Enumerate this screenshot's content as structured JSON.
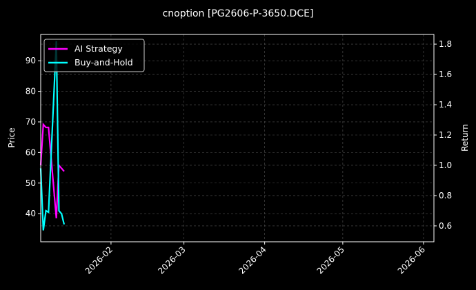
{
  "chart_data": {
    "type": "line",
    "title": "cnoption [PG2606-P-3650.DCE]",
    "ylabel_left": "Price",
    "ylabel_right": "Return",
    "xlim": [
      "2026-01-05",
      "2026-06-05"
    ],
    "ylim_left": [
      30.8,
      98.6
    ],
    "ylim_right": [
      0.495,
      1.864
    ],
    "x_ticks": [
      "2026-02-01",
      "2026-03-01",
      "2026-04-01",
      "2026-05-01",
      "2026-06-01"
    ],
    "x_tick_labels": [
      "2026-02",
      "2026-03",
      "2026-04",
      "2026-05",
      "2026-06"
    ],
    "y_ticks_left": [
      40,
      50,
      60,
      70,
      80,
      90
    ],
    "y_ticks_right": [
      0.6,
      0.8,
      1.0,
      1.2,
      1.4,
      1.6,
      1.8
    ],
    "grid": true,
    "legend_position": "top-left",
    "background": "#000000",
    "series": [
      {
        "name": "AI Strategy",
        "color": "#ff00ff",
        "axis": "right",
        "x": [
          "2026-01-05",
          "2026-01-06",
          "2026-01-07",
          "2026-01-08",
          "2026-01-11",
          "2026-01-12",
          "2026-01-13",
          "2026-01-14"
        ],
        "values": [
          1.0,
          1.27,
          1.25,
          1.25,
          0.65,
          1.0,
          0.98,
          0.96
        ]
      },
      {
        "name": "Buy-and-Hold",
        "color": "#00ffff",
        "axis": "right",
        "x": [
          "2026-01-05",
          "2026-01-06",
          "2026-01-07",
          "2026-01-08",
          "2026-01-11",
          "2026-01-12",
          "2026-01-13",
          "2026-01-14"
        ],
        "values": [
          0.98,
          0.57,
          0.7,
          0.69,
          1.82,
          0.7,
          0.68,
          0.61
        ]
      }
    ]
  }
}
